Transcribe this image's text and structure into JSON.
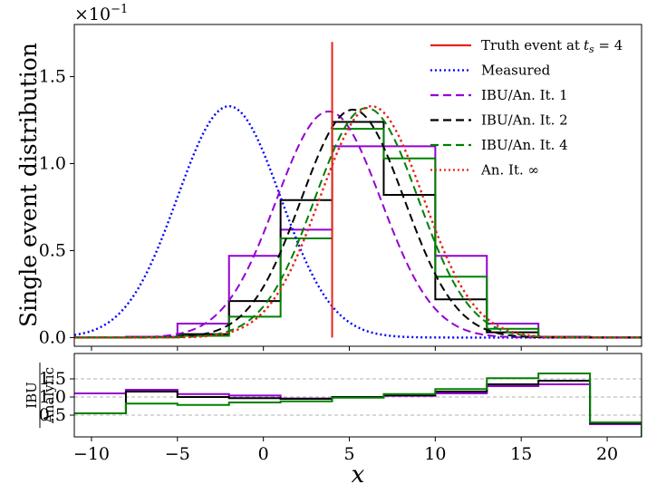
{
  "chart_data": {
    "type": "line",
    "multiplier_label": "×10",
    "multiplier_exp": "−1",
    "ylabel": "Single event distribution",
    "xlabel": "x",
    "xlim": [
      -11,
      22
    ],
    "top_panel": {
      "ylim": [
        -0.05,
        1.8
      ],
      "yticks": [
        0.0,
        0.5,
        1.0,
        1.5
      ],
      "ytick_labels": [
        "0.0",
        "0.5",
        "1.0",
        "1.5"
      ],
      "truth_event": {
        "x": 4,
        "y_top": 1.7
      },
      "curves": [
        {
          "name": "Measured",
          "color": "#0000ff",
          "style": "dotted",
          "mean": -2,
          "sigma": 3.0,
          "peak": 1.33
        },
        {
          "name": "IBU/An. It. 1",
          "color": "#9400d3",
          "style": "dashed",
          "mean": 3.8,
          "sigma": 3.05,
          "peak": 1.3
        },
        {
          "name": "IBU/An. It. 2",
          "color": "#000000",
          "style": "dashed",
          "mean": 5.2,
          "sigma": 3.0,
          "peak": 1.31
        },
        {
          "name": "IBU/An. It. 4",
          "color": "#008000",
          "style": "dashed",
          "mean": 6.0,
          "sigma": 3.0,
          "peak": 1.32
        },
        {
          "name": "An. It. ∞",
          "color": "#e8231a",
          "style": "dotted",
          "mean": 6.3,
          "sigma": 3.0,
          "peak": 1.33
        }
      ],
      "bin_edges": [
        -11,
        -8,
        -5,
        -2,
        1,
        4,
        7,
        10,
        13,
        16,
        19,
        22
      ],
      "histograms": [
        {
          "name": "IBU It. 1",
          "color": "#9400d3",
          "values": [
            0.0,
            0.005,
            0.08,
            0.47,
            0.62,
            1.1,
            1.1,
            0.47,
            0.08,
            0.005,
            0.0
          ]
        },
        {
          "name": "IBU It. 2",
          "color": "#000000",
          "values": [
            0.0,
            0.002,
            0.02,
            0.21,
            0.79,
            1.24,
            0.82,
            0.22,
            0.03,
            0.002,
            0.0
          ]
        },
        {
          "name": "IBU It. 4",
          "color": "#008000",
          "values": [
            0.0,
            0.001,
            0.01,
            0.12,
            0.57,
            1.2,
            1.03,
            0.35,
            0.05,
            0.003,
            0.0
          ]
        }
      ]
    },
    "bottom_panel": {
      "ylabel_num": "IBU",
      "ylabel_den": "Analytic",
      "ylim": [
        -0.1,
        2.2
      ],
      "yticks": [
        0.5,
        1.0,
        1.5
      ],
      "ytick_labels": [
        "0.5",
        "1.0",
        "1.5"
      ],
      "grid_lines": [
        0.5,
        1.0,
        1.5
      ],
      "ratios": [
        {
          "name": "IBU It. 1 / Analytic",
          "color": "#9400d3",
          "values": [
            1.1,
            1.2,
            1.08,
            1.04,
            0.96,
            0.99,
            1.03,
            1.1,
            1.3,
            1.35,
            0.25
          ]
        },
        {
          "name": "IBU It. 2 / Analytic",
          "color": "#000000",
          "values": [
            0.55,
            1.15,
            1.0,
            0.97,
            0.95,
            1.0,
            1.05,
            1.15,
            1.35,
            1.45,
            0.28
          ]
        },
        {
          "name": "IBU It. 4 / Analytic",
          "color": "#008000",
          "values": [
            0.55,
            0.82,
            0.78,
            0.85,
            0.88,
            0.98,
            1.08,
            1.22,
            1.52,
            1.65,
            0.3
          ]
        }
      ]
    },
    "xticks": [
      -10,
      -5,
      0,
      5,
      10,
      15,
      20
    ],
    "xtick_labels": [
      "−10",
      "−5",
      "0",
      "5",
      "10",
      "15",
      "20"
    ],
    "legend": {
      "position": "top-right",
      "entries": [
        {
          "label": "Truth event at",
          "math": "t",
          "sub": "s",
          "suffix": " = 4",
          "color": "#e8231a",
          "style": "solid"
        },
        {
          "label": "Measured",
          "color": "#0000ff",
          "style": "dotted"
        },
        {
          "label": "IBU/An. It. 1",
          "color": "#9400d3",
          "style": "dashed"
        },
        {
          "label": "IBU/An. It. 2",
          "color": "#000000",
          "style": "dashed"
        },
        {
          "label": "IBU/An. It. 4",
          "color": "#008000",
          "style": "dashed"
        },
        {
          "label": "An. It. ∞",
          "color": "#e8231a",
          "style": "dotted"
        }
      ]
    }
  }
}
